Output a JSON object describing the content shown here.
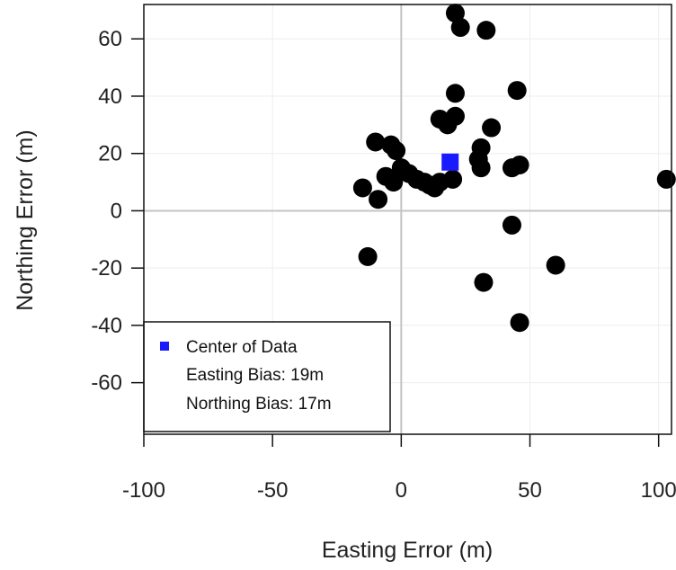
{
  "chart_data": {
    "type": "scatter",
    "title": "",
    "xlabel": "Easting Error (m)",
    "ylabel": "Northing Error (m)",
    "xlim": [
      -100,
      105
    ],
    "ylim": [
      -78,
      72
    ],
    "x_ticks": [
      -100,
      -50,
      0,
      50,
      100
    ],
    "y_ticks": [
      -60,
      -40,
      -20,
      0,
      20,
      40,
      60
    ],
    "x_tick_labels": [
      "-100",
      "-50",
      "0",
      "50",
      "100"
    ],
    "y_tick_labels": [
      "-60",
      "-40",
      "-20",
      "0",
      "20",
      "40",
      "60"
    ],
    "grid": true,
    "reference_lines": {
      "x": 0,
      "y": 0
    },
    "series": [
      {
        "marker": "circle",
        "color": "#000000",
        "points": [
          [
            21,
            69
          ],
          [
            23,
            64
          ],
          [
            33,
            63
          ],
          [
            21,
            41
          ],
          [
            45,
            42
          ],
          [
            15,
            32
          ],
          [
            18,
            30
          ],
          [
            21,
            33
          ],
          [
            35,
            29
          ],
          [
            -10,
            24
          ],
          [
            -4,
            23
          ],
          [
            -2,
            21
          ],
          [
            31,
            22
          ],
          [
            30,
            18
          ],
          [
            31,
            15
          ],
          [
            43,
            15
          ],
          [
            46,
            16
          ],
          [
            103,
            11
          ],
          [
            -15,
            8
          ],
          [
            -9,
            4
          ],
          [
            -6,
            12
          ],
          [
            -3,
            10
          ],
          [
            0,
            15
          ],
          [
            3,
            13
          ],
          [
            6,
            11
          ],
          [
            9,
            10
          ],
          [
            11,
            9
          ],
          [
            13,
            8
          ],
          [
            15,
            10
          ],
          [
            20,
            11
          ],
          [
            43,
            -5
          ],
          [
            -13,
            -16
          ],
          [
            32,
            -25
          ],
          [
            60,
            -19
          ],
          [
            46,
            -39
          ]
        ]
      },
      {
        "name": "Center of Data",
        "marker": "square",
        "color": "#1a1aff",
        "points": [
          [
            19,
            17
          ]
        ]
      }
    ],
    "legend": {
      "position": "bottom-left",
      "entries": [
        {
          "label": "Center of Data",
          "marker": "square",
          "color": "#1a1aff"
        },
        {
          "label": "Easting Bias: 19m"
        },
        {
          "label": "Northing Bias: 17m"
        }
      ]
    }
  }
}
